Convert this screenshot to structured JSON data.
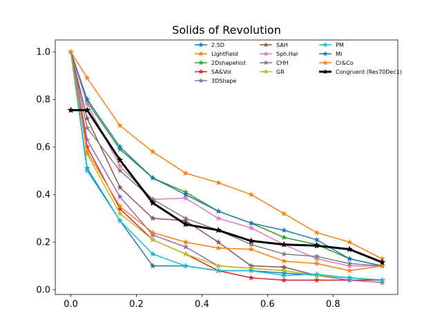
{
  "chart_data": {
    "type": "line",
    "title": "Solids of Revolution",
    "xlabel": "",
    "ylabel": "",
    "xlim": [
      -0.0475,
      0.9975
    ],
    "ylim": [
      -0.02,
      1.05
    ],
    "x_ticks": [
      "0.0",
      "0.2",
      "0.4",
      "0.6",
      "0.8"
    ],
    "x_tick_values": [
      0.0,
      0.2,
      0.4,
      0.6,
      0.8
    ],
    "y_ticks": [
      "0.0",
      "0.2",
      "0.4",
      "0.6",
      "0.8",
      "1.0"
    ],
    "y_tick_values": [
      0.0,
      0.2,
      0.4,
      0.6,
      0.8,
      1.0
    ],
    "grid": false,
    "legend_position": "top-right",
    "x": [
      0.0,
      0.05,
      0.15,
      0.25,
      0.35,
      0.45,
      0.55,
      0.65,
      0.75,
      0.85,
      0.95
    ],
    "series": [
      {
        "name": "2.5D",
        "color": "#1f77b4",
        "values": [
          1.0,
          0.51,
          0.29,
          0.1,
          0.1,
          0.08,
          0.08,
          0.07,
          0.06,
          0.05,
          0.04
        ]
      },
      {
        "name": "LightField",
        "color": "#ff7f0e",
        "values": [
          1.0,
          0.89,
          0.69,
          0.58,
          0.49,
          0.45,
          0.4,
          0.32,
          0.24,
          0.2,
          0.13
        ]
      },
      {
        "name": "2Dshapehist",
        "color": "#2ca02c",
        "values": [
          1.0,
          0.79,
          0.59,
          0.47,
          0.41,
          0.33,
          0.28,
          0.22,
          0.19,
          0.13,
          0.1
        ]
      },
      {
        "name": "SA&Vol",
        "color": "#d62728",
        "values": [
          1.0,
          0.6,
          0.34,
          0.21,
          0.15,
          0.08,
          0.05,
          0.04,
          0.04,
          0.04,
          0.04
        ]
      },
      {
        "name": "3DShape",
        "color": "#9467bd",
        "values": [
          1.0,
          0.63,
          0.39,
          0.23,
          0.18,
          0.1,
          0.09,
          0.08,
          0.06,
          0.04,
          0.03
        ]
      },
      {
        "name": "SAH",
        "color": "#8c564b",
        "values": [
          1.0,
          0.72,
          0.43,
          0.3,
          0.29,
          0.2,
          0.1,
          0.095,
          0.06,
          0.05,
          0.04
        ]
      },
      {
        "name": "Sph.Har",
        "color": "#e377c2",
        "values": [
          1.0,
          0.78,
          0.52,
          0.38,
          0.385,
          0.3,
          0.26,
          0.19,
          0.13,
          0.1,
          0.1
        ]
      },
      {
        "name": "CHH",
        "color": "#7f7f7f",
        "values": [
          1.0,
          0.68,
          0.5,
          0.38,
          0.3,
          0.25,
          0.19,
          0.15,
          0.14,
          0.11,
          0.1
        ]
      },
      {
        "name": "GR",
        "color": "#bcbd22",
        "values": [
          1.0,
          0.57,
          0.32,
          0.21,
          0.15,
          0.1,
          0.09,
          0.08,
          0.06,
          0.05,
          0.04
        ]
      },
      {
        "name": "PM",
        "color": "#17becf",
        "values": [
          1.0,
          0.5,
          0.29,
          0.15,
          0.1,
          0.08,
          0.08,
          0.06,
          0.065,
          0.05,
          0.04
        ]
      },
      {
        "name": "MI",
        "color": "#1f77b4",
        "values": [
          1.0,
          0.8,
          0.6,
          0.47,
          0.4,
          0.33,
          0.28,
          0.25,
          0.21,
          0.13,
          0.1
        ]
      },
      {
        "name": "Cr&Co",
        "color": "#ff7f0e",
        "values": [
          1.0,
          0.58,
          0.35,
          0.24,
          0.2,
          0.175,
          0.17,
          0.12,
          0.11,
          0.08,
          0.1
        ]
      },
      {
        "name": "Congruent (Res70Dec1)",
        "color": "#000000",
        "bold": true,
        "values": [
          0.755,
          0.755,
          0.545,
          0.365,
          0.275,
          0.25,
          0.205,
          0.19,
          0.185,
          0.17,
          0.115
        ]
      }
    ]
  }
}
